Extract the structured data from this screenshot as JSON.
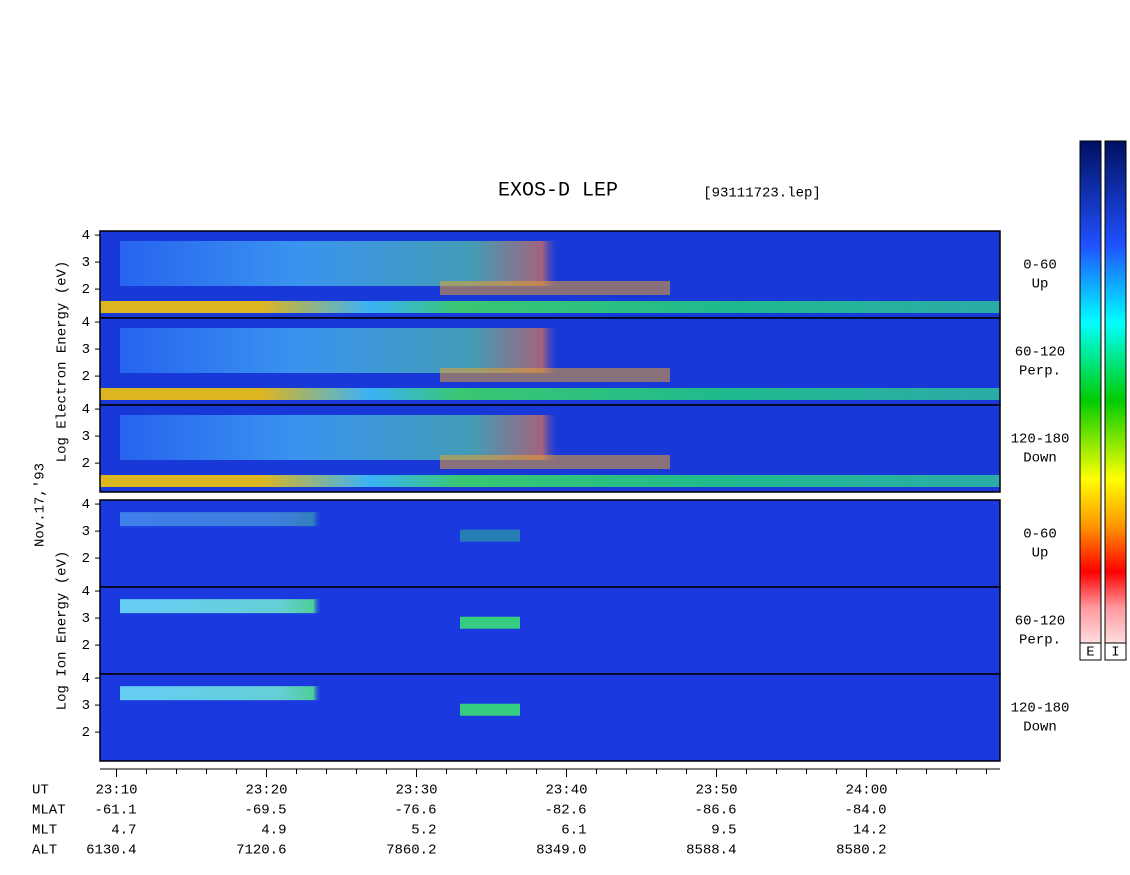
{
  "chart_data": {
    "type": "spectrogram",
    "title": "EXOS-D LEP",
    "subtitle": "[93111723.lep]",
    "date_label": "Nov.17,'93",
    "xlim": [
      1388.9,
      1448.9
    ],
    "xticks": [
      {
        "value": 1390,
        "label": "23:10"
      },
      {
        "value": 1400,
        "label": "23:20"
      },
      {
        "value": 1410,
        "label": "23:30"
      },
      {
        "value": 1420,
        "label": "23:40"
      },
      {
        "value": 1430,
        "label": "23:50"
      },
      {
        "value": 1440,
        "label": "24:00"
      }
    ],
    "minor_xticks": [
      1392,
      1394,
      1396,
      1398,
      1402,
      1404,
      1406,
      1408,
      1412,
      1414,
      1416,
      1418,
      1422,
      1424,
      1426,
      1428,
      1432,
      1434,
      1436,
      1438,
      1442,
      1444,
      1446,
      1448
    ],
    "groups": [
      {
        "ylabel": "Log Electron Energy (eV)",
        "panels": [
          {
            "channel": "0-60",
            "direction": "Up"
          },
          {
            "channel": "60-120",
            "direction": "Perp."
          },
          {
            "channel": "120-180",
            "direction": "Down"
          }
        ]
      },
      {
        "ylabel": "Log Ion Energy (eV)",
        "panels": [
          {
            "channel": "0-60",
            "direction": "Up"
          },
          {
            "channel": "60-120",
            "direction": "Perp."
          },
          {
            "channel": "120-180",
            "direction": "Down"
          }
        ]
      }
    ],
    "ylim": [
      0.93,
      4.15
    ],
    "yticks": [
      2,
      3,
      4
    ],
    "ephemeris": [
      {
        "label": "UT"
      },
      {
        "label": "MLAT",
        "values": [
          "-61.1",
          "-69.5",
          "-76.6",
          "-82.6",
          "-86.6",
          "-84.0"
        ]
      },
      {
        "label": "MLT",
        "values": [
          "4.7",
          "4.9",
          "5.2",
          "6.1",
          "9.5",
          "14.2"
        ]
      },
      {
        "label": "ALT",
        "values": [
          "6130.4",
          "7120.6",
          "7860.2",
          "8349.0",
          "8588.4",
          "8580.2"
        ]
      }
    ],
    "colorbars": [
      "E",
      "I"
    ]
  }
}
